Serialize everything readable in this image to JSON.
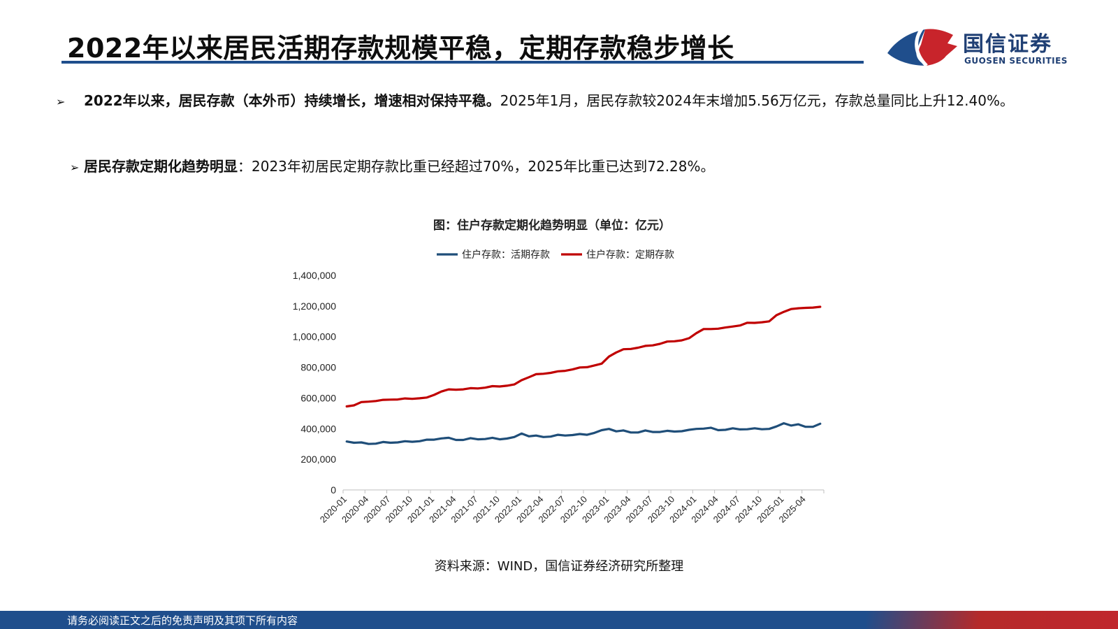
{
  "header": {
    "title": "2022年以来居民活期存款规模平稳，定期存款稳步增长",
    "logo_name": "国信证券",
    "logo_en": "GUOSEN SECURITIES",
    "logo_colors": {
      "red": "#c8242b",
      "blue": "#1f4e8c"
    }
  },
  "bullets": [
    {
      "marker": "➢",
      "bold": "2022年以来，居民存款（本外币）持续增长，增速相对保持平稳。",
      "text": "2025年1月，居民存款较2024年末增加5.56万亿元，存款总量同比上升12.40%。"
    },
    {
      "marker": "➢",
      "bold": "居民存款定期化趋势明显",
      "text": "：2023年初居民定期存款比重已经超过70%，2025年比重已达到72.28%。"
    }
  ],
  "chart_data": {
    "type": "line",
    "title": "图：住户存款定期化趋势明显（单位：亿元）",
    "legend_position": "top",
    "grid": false,
    "ylim": [
      0,
      1400000
    ],
    "yticks": [
      "0",
      "200,000",
      "400,000",
      "600,000",
      "800,000",
      "1,000,000",
      "1,200,000",
      "1,400,000"
    ],
    "xticks": [
      "2020-01",
      "2020-04",
      "2020-07",
      "2020-10",
      "2021-01",
      "2021-04",
      "2021-07",
      "2021-10",
      "2022-01",
      "2022-04",
      "2022-07",
      "2022-10",
      "2023-01",
      "2023-04",
      "2023-07",
      "2023-10",
      "2024-01",
      "2024-04",
      "2024-07",
      "2024-10",
      "2025-01",
      "2025-04"
    ],
    "x_start": "2020-01",
    "x_end": "2025-06",
    "series": [
      {
        "name": "住户存款：活期存款",
        "color": "#1f4e79",
        "values": [
          316000,
          308000,
          310000,
          300000,
          302000,
          313000,
          308000,
          310000,
          318000,
          314000,
          318000,
          328000,
          328000,
          336000,
          340000,
          326000,
          326000,
          338000,
          330000,
          332000,
          340000,
          330000,
          335000,
          345000,
          368000,
          350000,
          355000,
          345000,
          348000,
          360000,
          355000,
          358000,
          365000,
          360000,
          372000,
          390000,
          398000,
          382000,
          388000,
          375000,
          375000,
          388000,
          378000,
          378000,
          386000,
          381000,
          383000,
          392000,
          398000,
          400000,
          406000,
          390000,
          392000,
          402000,
          395000,
          396000,
          402000,
          396000,
          398000,
          414000,
          435000,
          420000,
          428000,
          412000,
          412000,
          432000
        ]
      },
      {
        "name": "住户存款：定期存款",
        "color": "#c00000",
        "values": [
          545000,
          552000,
          573000,
          576000,
          580000,
          588000,
          589000,
          590000,
          597000,
          594000,
          598000,
          603000,
          620000,
          642000,
          656000,
          654000,
          656000,
          664000,
          662000,
          667000,
          677000,
          675000,
          680000,
          688000,
          716000,
          735000,
          755000,
          758000,
          764000,
          774000,
          777000,
          786000,
          799000,
          801000,
          812000,
          824000,
          870000,
          897000,
          918000,
          920000,
          928000,
          940000,
          943000,
          953000,
          968000,
          970000,
          976000,
          990000,
          1023000,
          1050000,
          1050000,
          1052000,
          1060000,
          1066000,
          1073000,
          1091000,
          1090000,
          1094000,
          1100000,
          1140000,
          1162000,
          1180000,
          1185000,
          1188000,
          1190000,
          1195000
        ]
      }
    ],
    "source": "资料来源：WIND，国信证券经济研究所整理"
  },
  "footer": {
    "disclaimer": "请务必阅读正文之后的免责声明及其项下所有内容"
  }
}
